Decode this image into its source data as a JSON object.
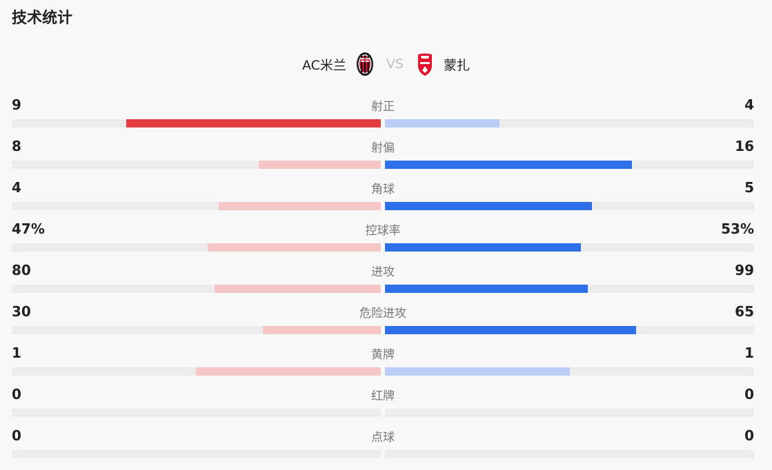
{
  "title": "技术统计",
  "home_team": {
    "name": "AC米兰",
    "logo_icon": "ac-milan-crest-icon"
  },
  "away_team": {
    "name": "蒙扎",
    "logo_icon": "monza-crest-icon"
  },
  "vs_label": "VS",
  "colors": {
    "home_strong": "#e23d3e",
    "home_weak": "#f6c6c6",
    "away_strong": "#2f6fe8",
    "away_weak": "#b9cdf6",
    "track": "#ececec"
  },
  "stats": [
    {
      "label": "射正",
      "home": "9",
      "away": "4",
      "home_fraction": 0.69,
      "away_fraction": 0.31,
      "leader": "home"
    },
    {
      "label": "射偏",
      "home": "8",
      "away": "16",
      "home_fraction": 0.33,
      "away_fraction": 0.67,
      "leader": "away"
    },
    {
      "label": "角球",
      "home": "4",
      "away": "5",
      "home_fraction": 0.44,
      "away_fraction": 0.56,
      "leader": "away"
    },
    {
      "label": "控球率",
      "home": "47%",
      "away": "53%",
      "home_fraction": 0.47,
      "away_fraction": 0.53,
      "leader": "away"
    },
    {
      "label": "进攻",
      "home": "80",
      "away": "99",
      "home_fraction": 0.45,
      "away_fraction": 0.55,
      "leader": "away"
    },
    {
      "label": "危险进攻",
      "home": "30",
      "away": "65",
      "home_fraction": 0.32,
      "away_fraction": 0.68,
      "leader": "away"
    },
    {
      "label": "黄牌",
      "home": "1",
      "away": "1",
      "home_fraction": 0.5,
      "away_fraction": 0.5,
      "leader": "tie"
    },
    {
      "label": "红牌",
      "home": "0",
      "away": "0",
      "home_fraction": 0,
      "away_fraction": 0,
      "leader": "tie"
    },
    {
      "label": "点球",
      "home": "0",
      "away": "0",
      "home_fraction": 0,
      "away_fraction": 0,
      "leader": "tie"
    }
  ]
}
